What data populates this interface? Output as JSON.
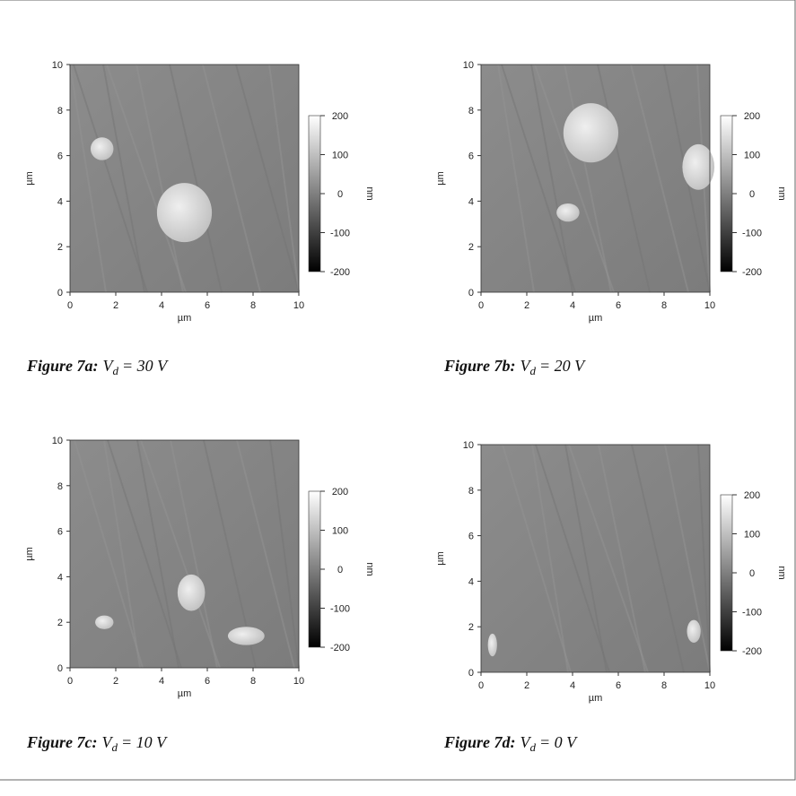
{
  "figures": [
    {
      "caption": {
        "label": "Figure 7a:",
        "symbol": "V",
        "subscript": "d",
        "equation": "= 30 V"
      },
      "xlabel": "µm",
      "ylabel": "µm",
      "xlim": [
        0,
        10
      ],
      "ylim": [
        0,
        10
      ],
      "xticks": [
        0,
        2,
        4,
        6,
        8,
        10
      ],
      "yticks": [
        0,
        2,
        4,
        6,
        8,
        10
      ],
      "colorbar": {
        "label": "nm",
        "lim": [
          -200,
          200
        ],
        "ticks": [
          -200,
          -100,
          0,
          100,
          200
        ]
      }
    },
    {
      "caption": {
        "label": "Figure 7b:",
        "symbol": "V",
        "subscript": "d",
        "equation": "= 20 V"
      },
      "xlabel": "µm",
      "ylabel": "µm",
      "xlim": [
        0,
        10
      ],
      "ylim": [
        0,
        10
      ],
      "xticks": [
        0,
        2,
        4,
        6,
        8,
        10
      ],
      "yticks": [
        0,
        2,
        4,
        6,
        8,
        10
      ],
      "colorbar": {
        "label": "nm",
        "lim": [
          -200,
          200
        ],
        "ticks": [
          -200,
          -100,
          0,
          100,
          200
        ]
      }
    },
    {
      "caption": {
        "label": "Figure 7c:",
        "symbol": "V",
        "subscript": "d",
        "equation": "= 10 V"
      },
      "xlabel": "µm",
      "ylabel": "µm",
      "xlim": [
        0,
        10
      ],
      "ylim": [
        0,
        10
      ],
      "xticks": [
        0,
        2,
        4,
        6,
        8,
        10
      ],
      "yticks": [
        0,
        2,
        4,
        6,
        8,
        10
      ],
      "colorbar": {
        "label": "nm",
        "lim": [
          -200,
          200
        ],
        "ticks": [
          -200,
          -100,
          0,
          100,
          200
        ]
      }
    },
    {
      "caption": {
        "label": "Figure 7d:",
        "symbol": "V",
        "subscript": "d",
        "equation": "= 0 V"
      },
      "xlabel": "µm",
      "ylabel": "µm",
      "xlim": [
        0,
        10
      ],
      "ylim": [
        0,
        10
      ],
      "xticks": [
        0,
        2,
        4,
        6,
        8,
        10
      ],
      "yticks": [
        0,
        2,
        4,
        6,
        8,
        10
      ],
      "colorbar": {
        "label": "nm",
        "lim": [
          -200,
          200
        ],
        "ticks": [
          -200,
          -100,
          0,
          100,
          200
        ]
      }
    }
  ]
}
